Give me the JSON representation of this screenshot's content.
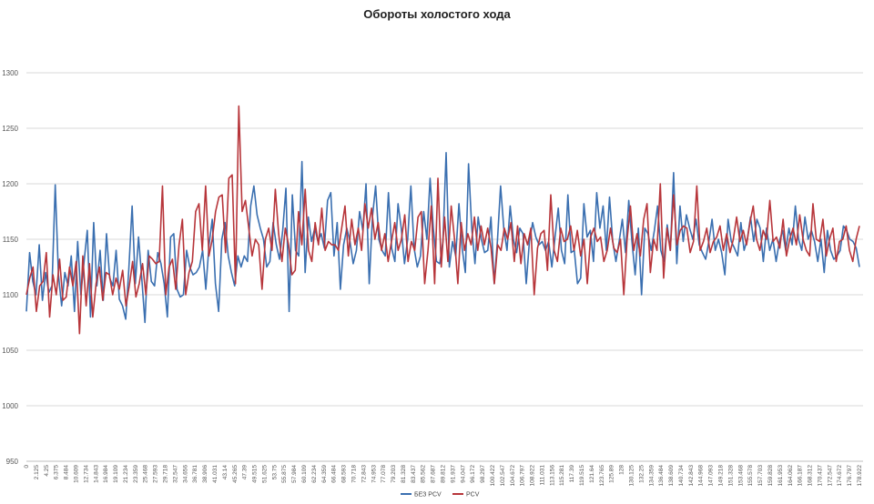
{
  "chart_data": {
    "type": "line",
    "title": "Обороты холостого хода",
    "xlabel": "",
    "ylabel": "",
    "ylim": [
      950,
      1300
    ],
    "yticks": [
      950,
      1000,
      1050,
      1100,
      1150,
      1200,
      1250,
      1300
    ],
    "grid": true,
    "legend_position": "bottom-center",
    "x_tick_labels": [
      "0",
      "2.125",
      "4.25",
      "6.375",
      "8.484",
      "10.609",
      "12.734",
      "14.843",
      "16.984",
      "19.109",
      "21.234",
      "23.359",
      "25.468",
      "27.593",
      "29.718",
      "32.547",
      "34.656",
      "36.781",
      "38.906",
      "41.031",
      "43.14",
      "45.265",
      "47.39",
      "49.515",
      "51.625",
      "53.75",
      "55.875",
      "57.984",
      "60.109",
      "62.234",
      "64.359",
      "66.484",
      "68.593",
      "70.718",
      "72.843",
      "74.953",
      "77.078",
      "79.203",
      "81.328",
      "83.437",
      "85.562",
      "87.687",
      "89.812",
      "91.937",
      "94.047",
      "96.172",
      "98.297",
      "100.422",
      "102.547",
      "104.672",
      "106.797",
      "108.922",
      "111.031",
      "113.156",
      "115.281",
      "117.39",
      "119.515",
      "121.64",
      "123.765",
      "125.89",
      "128",
      "130.125",
      "132.25",
      "134.359",
      "136.484",
      "138.609",
      "140.734",
      "142.843",
      "144.968",
      "147.093",
      "149.218",
      "151.328",
      "153.468",
      "155.578",
      "157.703",
      "159.828",
      "161.953",
      "164.062",
      "166.187",
      "168.312",
      "170.437",
      "172.547",
      "174.672",
      "176.797",
      "178.922"
    ],
    "series": [
      {
        "name": "БЕЗ PCV",
        "color": "#3a6fb0",
        "values": [
          1085,
          1138,
          1112,
          1100,
          1145,
          1095,
          1120,
          1102,
          1108,
          1199,
          1118,
          1090,
          1120,
          1108,
          1135,
          1085,
          1148,
          1100,
          1130,
          1158,
          1080,
          1165,
          1108,
          1140,
          1095,
          1155,
          1115,
          1108,
          1140,
          1096,
          1090,
          1078,
          1125,
          1180,
          1110,
          1152,
          1115,
          1075,
          1140,
          1112,
          1108,
          1138,
          1128,
          1110,
          1080,
          1152,
          1155,
          1105,
          1098,
          1100,
          1140,
          1125,
          1118,
          1120,
          1125,
          1140,
          1105,
          1145,
          1168,
          1110,
          1085,
          1150,
          1165,
          1135,
          1120,
          1108,
          1135,
          1125,
          1135,
          1130,
          1180,
          1198,
          1172,
          1160,
          1150,
          1125,
          1130,
          1165,
          1145,
          1132,
          1158,
          1196,
          1085,
          1190,
          1140,
          1135,
          1220,
          1120,
          1170,
          1148,
          1160,
          1148,
          1155,
          1142,
          1185,
          1192,
          1135,
          1165,
          1105,
          1145,
          1160,
          1148,
          1128,
          1140,
          1175,
          1158,
          1200,
          1110,
          1170,
          1198,
          1150,
          1140,
          1135,
          1192,
          1142,
          1130,
          1182,
          1160,
          1128,
          1150,
          1198,
          1142,
          1125,
          1135,
          1175,
          1150,
          1205,
          1160,
          1130,
          1128,
          1148,
          1228,
          1125,
          1148,
          1135,
          1182,
          1142,
          1120,
          1218,
          1160,
          1128,
          1170,
          1150,
          1138,
          1140,
          1170,
          1110,
          1148,
          1198,
          1160,
          1140,
          1180,
          1150,
          1138,
          1160,
          1155,
          1110,
          1148,
          1165,
          1152,
          1145,
          1148,
          1140,
          1148,
          1125,
          1152,
          1178,
          1140,
          1128,
          1190,
          1138,
          1140,
          1110,
          1115,
          1182,
          1152,
          1158,
          1130,
          1192,
          1160,
          1180,
          1140,
          1188,
          1148,
          1130,
          1148,
          1168,
          1138,
          1185,
          1148,
          1118,
          1160,
          1100,
          1160,
          1155,
          1140,
          1158,
          1180,
          1140,
          1130,
          1163,
          1140,
          1210,
          1128,
          1180,
          1148,
          1172,
          1160,
          1150,
          1168,
          1145,
          1138,
          1132,
          1148,
          1168,
          1140,
          1150,
          1138,
          1118,
          1168,
          1148,
          1142,
          1135,
          1165,
          1140,
          1150,
          1170,
          1148,
          1168,
          1160,
          1130,
          1160,
          1140,
          1150,
          1130,
          1148,
          1158,
          1140,
          1160,
          1145,
          1180,
          1150,
          1140,
          1170,
          1150,
          1158,
          1148,
          1130,
          1150,
          1120,
          1158,
          1140,
          1132,
          1135,
          1140,
          1162,
          1158,
          1150,
          1148,
          1142,
          1125
        ]
      },
      {
        "name": "PCV",
        "color": "#b7353a",
        "values": [
          1100,
          1115,
          1125,
          1085,
          1108,
          1112,
          1138,
          1080,
          1118,
          1100,
          1132,
          1095,
          1098,
          1125,
          1108,
          1130,
          1065,
          1135,
          1090,
          1128,
          1080,
          1110,
          1125,
          1095,
          1120,
          1118,
          1100,
          1115,
          1105,
          1122,
          1090,
          1108,
          1130,
          1098,
          1110,
          1128,
          1100,
          1135,
          1132,
          1128,
          1130,
          1198,
          1100,
          1125,
          1132,
          1105,
          1145,
          1168,
          1100,
          1120,
          1130,
          1175,
          1182,
          1140,
          1198,
          1135,
          1150,
          1175,
          1188,
          1190,
          1138,
          1205,
          1208,
          1110,
          1270,
          1175,
          1185,
          1160,
          1135,
          1150,
          1145,
          1105,
          1150,
          1160,
          1140,
          1195,
          1155,
          1130,
          1160,
          1145,
          1118,
          1122,
          1175,
          1145,
          1195,
          1140,
          1130,
          1165,
          1145,
          1178,
          1140,
          1148,
          1145,
          1145,
          1140,
          1160,
          1180,
          1135,
          1168,
          1145,
          1160,
          1140,
          1182,
          1160,
          1178,
          1150,
          1165,
          1140,
          1155,
          1130,
          1148,
          1165,
          1140,
          1150,
          1172,
          1130,
          1148,
          1140,
          1170,
          1175,
          1110,
          1140,
          1180,
          1110,
          1205,
          1125,
          1170,
          1130,
          1180,
          1150,
          1110,
          1165,
          1140,
          1155,
          1145,
          1170,
          1140,
          1162,
          1145,
          1160,
          1142,
          1110,
          1145,
          1140,
          1160,
          1150,
          1165,
          1130,
          1162,
          1128,
          1155,
          1145,
          1160,
          1100,
          1142,
          1155,
          1158,
          1122,
          1190,
          1140,
          1130,
          1160,
          1148,
          1150,
          1162,
          1140,
          1158,
          1135,
          1150,
          1110,
          1152,
          1160,
          1148,
          1152,
          1130,
          1140,
          1160,
          1142,
          1138,
          1150,
          1100,
          1150,
          1180,
          1140,
          1155,
          1135,
          1168,
          1182,
          1120,
          1150,
          1140,
          1200,
          1115,
          1160,
          1140,
          1190,
          1145,
          1158,
          1162,
          1160,
          1138,
          1148,
          1198,
          1140,
          1148,
          1160,
          1138,
          1148,
          1152,
          1162,
          1140,
          1155,
          1138,
          1150,
          1170,
          1148,
          1158,
          1145,
          1165,
          1180,
          1150,
          1140,
          1158,
          1150,
          1185,
          1148,
          1152,
          1142,
          1168,
          1135,
          1150,
          1160,
          1145,
          1172,
          1150,
          1140,
          1135,
          1182,
          1150,
          1148,
          1168,
          1135,
          1150,
          1160,
          1130,
          1148,
          1150,
          1162,
          1140,
          1130,
          1150,
          1162
        ]
      }
    ]
  }
}
